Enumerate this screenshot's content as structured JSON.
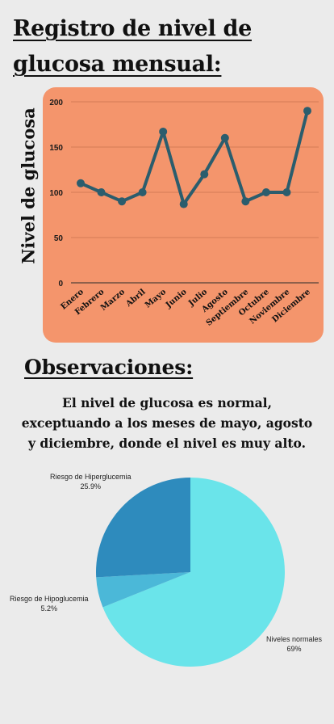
{
  "title": "Registro de nivel de glucosa mensual:",
  "line_chart": {
    "ylabel": "Nivel de glucosa"
  },
  "observations": {
    "title": "Observaciones:",
    "text": "El nivel de glucosa es normal, exceptuando a los meses de mayo, agosto y diciembre, donde el nivel es muy alto."
  },
  "chart_data": [
    {
      "type": "line",
      "title": "",
      "xlabel": "",
      "ylabel": "Nivel de glucosa",
      "categories": [
        "Enero",
        "Febrero",
        "Marzo",
        "Abril",
        "Mayo",
        "Junio",
        "Julio",
        "Agosto",
        "Septiembre",
        "Octubre",
        "Noviembre",
        "Diciembre"
      ],
      "values": [
        110,
        100,
        90,
        100,
        167,
        87,
        120,
        160,
        90,
        100,
        100,
        190
      ],
      "yticks": [
        0,
        50,
        100,
        150,
        200
      ],
      "ylim": [
        0,
        200
      ],
      "grid": true,
      "colors": {
        "background": "#f4956c",
        "line": "#2b5d6d",
        "grid": "#c8734f"
      }
    },
    {
      "type": "pie",
      "slices": [
        {
          "label": "Niveles normales",
          "value": 69,
          "value_text": "69%",
          "color": "#6ae4ea"
        },
        {
          "label": "Riesgo de Hipoglucemia",
          "value": 5.2,
          "value_text": "5.2%",
          "color": "#4bb8d8"
        },
        {
          "label": "Riesgo de Hiperglucemia",
          "value": 25.9,
          "value_text": "25.9%",
          "color": "#2e8bbd"
        }
      ]
    }
  ]
}
